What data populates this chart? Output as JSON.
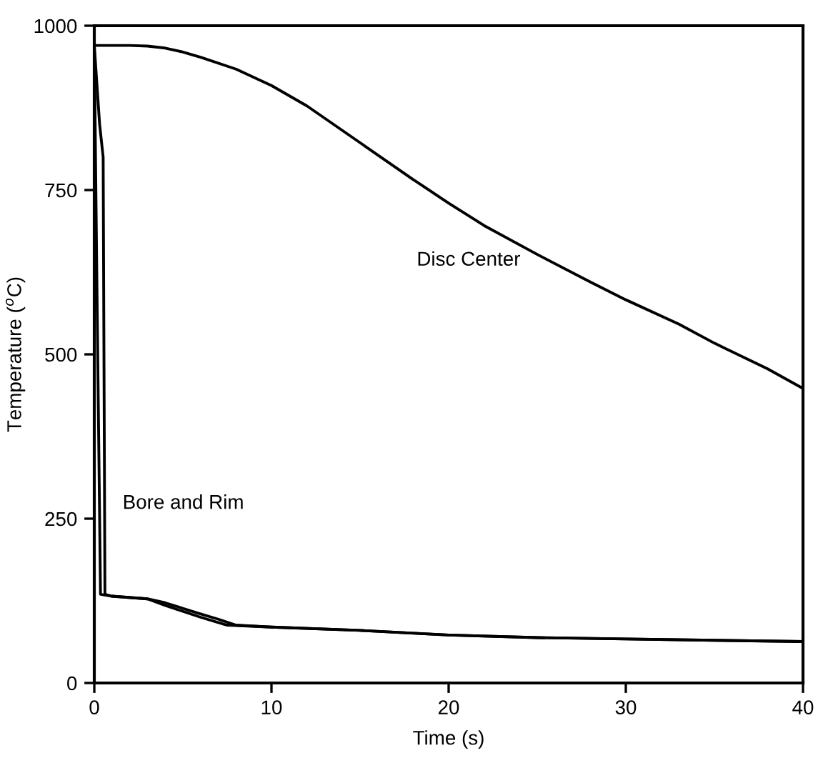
{
  "chart_data": {
    "type": "line",
    "xlabel": "Time (s)",
    "ylabel": "Temperature ($^{o}$C)",
    "xlim": [
      0,
      40
    ],
    "ylim": [
      0,
      1000
    ],
    "xticks": [
      0,
      10,
      20,
      30,
      40
    ],
    "yticks": [
      0,
      250,
      500,
      750,
      1000
    ],
    "grid": false,
    "legend": false,
    "marker": "none",
    "line_style": "solid",
    "series": [
      {
        "color": "#000000",
        "x": [
          0,
          1,
          2,
          3,
          4,
          5,
          6,
          8,
          10,
          12,
          15,
          18,
          20,
          22,
          25,
          28,
          30,
          33,
          35,
          38,
          40
        ],
        "values": [
          970,
          970,
          970,
          969,
          966,
          960,
          952,
          934,
          909,
          878,
          822,
          766,
          730,
          696,
          652,
          610,
          583,
          546,
          517,
          478,
          448
        ]
      },
      {
        "color": "#000000",
        "x": [
          0,
          0.3,
          0.5,
          0.6,
          1,
          3,
          4,
          6,
          7,
          8,
          10,
          15,
          20,
          25,
          30,
          35,
          40
        ],
        "values": [
          970,
          850,
          800,
          135,
          132,
          128,
          122,
          105,
          97,
          88,
          85,
          80,
          73,
          69,
          67,
          65,
          63
        ]
      },
      {
        "color": "#000000",
        "x": [
          0,
          0.15,
          0.35,
          1,
          3,
          4,
          6,
          7.5,
          10,
          15,
          20,
          25,
          30,
          35,
          40
        ],
        "values": [
          970,
          600,
          135,
          132,
          128,
          118,
          100,
          88,
          85,
          80,
          73,
          69,
          67,
          65,
          63
        ]
      }
    ],
    "annotations": [
      "Disc Center",
      "Bore and Rim"
    ]
  }
}
